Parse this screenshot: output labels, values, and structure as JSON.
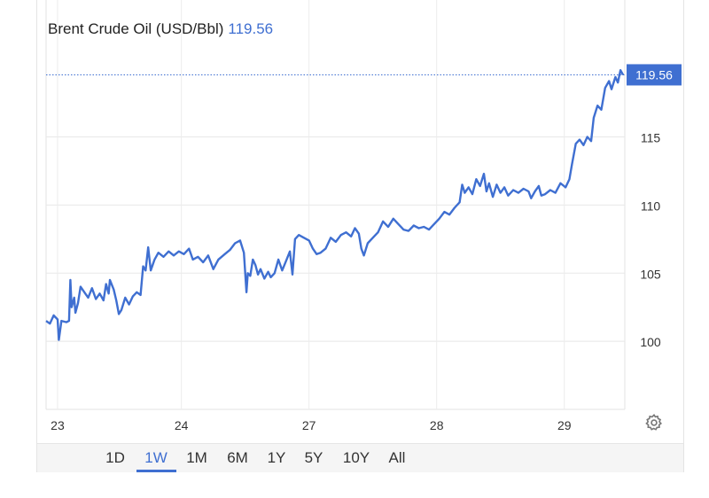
{
  "header": {
    "title": "Brent Crude Oil (USD/Bbl)",
    "last_value": "119.56"
  },
  "chart_data": {
    "type": "line",
    "title": "Brent Crude Oil (USD/Bbl)",
    "xlabel": "",
    "ylabel": "",
    "x_ticks": [
      "23",
      "24",
      "27",
      "28",
      "29"
    ],
    "y_ticks": [
      100,
      105,
      110,
      115
    ],
    "ylim": [
      95,
      120.5
    ],
    "grid": true,
    "last_price_label": "119.56",
    "series": [
      {
        "color": "#3f6fd1",
        "points": [
          [
            0.0,
            101.5
          ],
          [
            0.03,
            101.3
          ],
          [
            0.06,
            101.9
          ],
          [
            0.09,
            101.6
          ],
          [
            0.1,
            100.1
          ],
          [
            0.12,
            101.5
          ],
          [
            0.16,
            101.4
          ],
          [
            0.18,
            101.5
          ],
          [
            0.19,
            104.5
          ],
          [
            0.2,
            102.5
          ],
          [
            0.22,
            103.2
          ],
          [
            0.23,
            102.1
          ],
          [
            0.25,
            102.8
          ],
          [
            0.27,
            104.0
          ],
          [
            0.3,
            103.6
          ],
          [
            0.33,
            103.2
          ],
          [
            0.36,
            103.9
          ],
          [
            0.39,
            103.1
          ],
          [
            0.42,
            103.5
          ],
          [
            0.45,
            103.0
          ],
          [
            0.47,
            104.2
          ],
          [
            0.49,
            103.5
          ],
          [
            0.5,
            104.5
          ],
          [
            0.53,
            103.8
          ],
          [
            0.55,
            103.0
          ],
          [
            0.57,
            102.0
          ],
          [
            0.59,
            102.3
          ],
          [
            0.62,
            103.2
          ],
          [
            0.65,
            102.7
          ],
          [
            0.68,
            103.3
          ],
          [
            0.71,
            103.6
          ],
          [
            0.74,
            103.4
          ],
          [
            0.76,
            105.5
          ],
          [
            0.78,
            105.2
          ],
          [
            0.8,
            106.9
          ],
          [
            0.82,
            105.2
          ],
          [
            0.85,
            106.0
          ],
          [
            0.88,
            106.5
          ],
          [
            0.92,
            106.2
          ],
          [
            0.96,
            106.6
          ],
          [
            1.0,
            106.3
          ],
          [
            1.04,
            106.6
          ],
          [
            1.08,
            106.4
          ],
          [
            1.12,
            106.8
          ],
          [
            1.15,
            106.0
          ],
          [
            1.19,
            106.2
          ],
          [
            1.23,
            105.8
          ],
          [
            1.27,
            106.3
          ],
          [
            1.31,
            105.3
          ],
          [
            1.35,
            106.0
          ],
          [
            1.4,
            106.4
          ],
          [
            1.44,
            106.7
          ],
          [
            1.48,
            107.2
          ],
          [
            1.52,
            107.4
          ],
          [
            1.55,
            106.5
          ],
          [
            1.57,
            103.6
          ],
          [
            1.58,
            105.0
          ],
          [
            1.6,
            104.8
          ],
          [
            1.62,
            106.0
          ],
          [
            1.64,
            105.6
          ],
          [
            1.66,
            104.9
          ],
          [
            1.68,
            105.3
          ],
          [
            1.71,
            104.6
          ],
          [
            1.74,
            105.1
          ],
          [
            1.76,
            104.7
          ],
          [
            1.79,
            105.0
          ],
          [
            1.82,
            106.0
          ],
          [
            1.85,
            105.2
          ],
          [
            1.88,
            105.9
          ],
          [
            1.91,
            106.6
          ],
          [
            1.93,
            104.9
          ],
          [
            1.95,
            107.5
          ],
          [
            1.98,
            107.8
          ],
          [
            2.02,
            107.6
          ],
          [
            2.06,
            107.4
          ],
          [
            2.09,
            106.8
          ],
          [
            2.12,
            106.4
          ],
          [
            2.15,
            106.5
          ],
          [
            2.19,
            106.8
          ],
          [
            2.23,
            107.6
          ],
          [
            2.27,
            107.3
          ],
          [
            2.31,
            107.8
          ],
          [
            2.35,
            108.0
          ],
          [
            2.39,
            107.7
          ],
          [
            2.42,
            108.3
          ],
          [
            2.45,
            107.9
          ],
          [
            2.47,
            106.8
          ],
          [
            2.49,
            106.3
          ],
          [
            2.52,
            107.2
          ],
          [
            2.56,
            107.6
          ],
          [
            2.6,
            108.0
          ],
          [
            2.64,
            108.8
          ],
          [
            2.68,
            108.4
          ],
          [
            2.72,
            109.0
          ],
          [
            2.76,
            108.6
          ],
          [
            2.8,
            108.2
          ],
          [
            2.84,
            108.1
          ],
          [
            2.88,
            108.5
          ],
          [
            2.92,
            108.3
          ],
          [
            2.96,
            108.4
          ],
          [
            3.0,
            108.2
          ],
          [
            3.04,
            108.6
          ],
          [
            3.08,
            109.0
          ],
          [
            3.12,
            109.5
          ],
          [
            3.16,
            109.3
          ],
          [
            3.2,
            109.8
          ],
          [
            3.24,
            110.2
          ],
          [
            3.26,
            111.5
          ],
          [
            3.28,
            110.9
          ],
          [
            3.31,
            111.3
          ],
          [
            3.34,
            110.8
          ],
          [
            3.37,
            111.9
          ],
          [
            3.4,
            111.4
          ],
          [
            3.43,
            112.3
          ],
          [
            3.45,
            111.0
          ],
          [
            3.47,
            111.6
          ],
          [
            3.5,
            110.6
          ],
          [
            3.53,
            111.5
          ],
          [
            3.56,
            110.9
          ],
          [
            3.59,
            111.3
          ],
          [
            3.62,
            110.7
          ],
          [
            3.66,
            111.1
          ],
          [
            3.7,
            110.9
          ],
          [
            3.74,
            111.2
          ],
          [
            3.78,
            111.0
          ],
          [
            3.8,
            110.5
          ],
          [
            3.83,
            111.0
          ],
          [
            3.86,
            111.4
          ],
          [
            3.88,
            110.7
          ],
          [
            3.91,
            110.8
          ],
          [
            3.95,
            111.1
          ],
          [
            3.99,
            110.9
          ],
          [
            4.03,
            111.6
          ],
          [
            4.07,
            111.3
          ],
          [
            4.1,
            111.9
          ],
          [
            4.12,
            113.0
          ],
          [
            4.15,
            114.5
          ],
          [
            4.18,
            114.8
          ],
          [
            4.21,
            114.4
          ],
          [
            4.24,
            115.0
          ],
          [
            4.27,
            114.7
          ],
          [
            4.29,
            116.4
          ],
          [
            4.32,
            117.3
          ],
          [
            4.35,
            117.0
          ],
          [
            4.38,
            118.6
          ],
          [
            4.41,
            119.1
          ],
          [
            4.43,
            118.5
          ],
          [
            4.46,
            119.4
          ],
          [
            4.48,
            119.0
          ],
          [
            4.5,
            119.9
          ],
          [
            4.52,
            119.56
          ]
        ]
      }
    ]
  },
  "controls": {
    "ranges": [
      "1D",
      "1W",
      "1M",
      "6M",
      "1Y",
      "5Y",
      "10Y",
      "All"
    ],
    "active_range": "1W",
    "settings_icon": "gear-icon"
  }
}
